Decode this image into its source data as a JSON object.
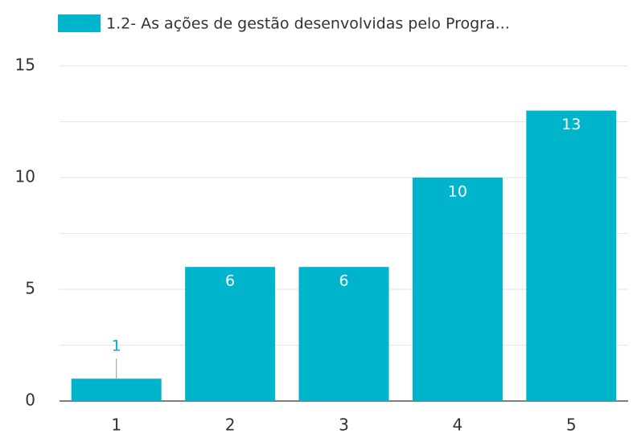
{
  "chart_data": {
    "type": "bar",
    "categories": [
      "1",
      "2",
      "3",
      "4",
      "5"
    ],
    "series": [
      {
        "name": "1.2- As ações de gestão desenvolvidas pelo Progra...",
        "color": "#00b4cc",
        "values": [
          1,
          6,
          6,
          10,
          13
        ]
      }
    ],
    "ylim": [
      0,
      15
    ],
    "yticks": [
      0,
      5,
      10,
      15
    ],
    "minor_yticks": [
      2.5,
      7.5,
      12.5
    ],
    "grid": true,
    "legend": "top"
  }
}
